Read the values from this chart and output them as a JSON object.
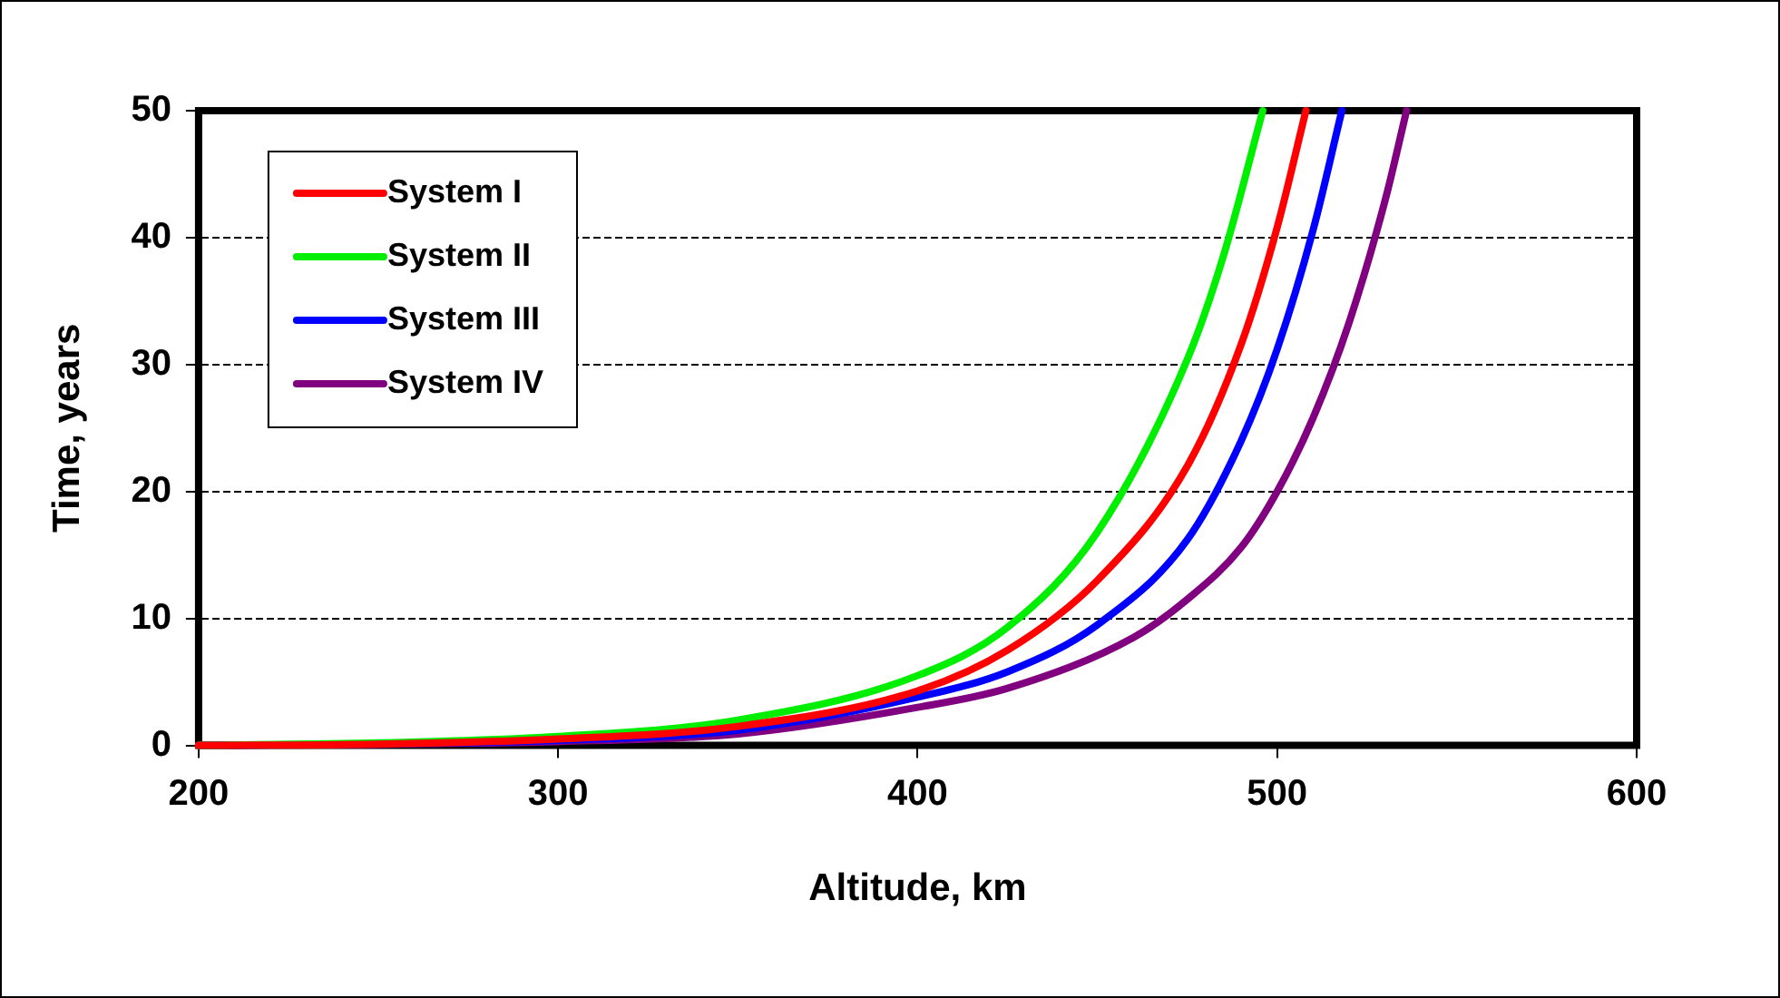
{
  "chart_data": {
    "type": "line",
    "xlabel": "Altitude, km",
    "ylabel": "Time, years",
    "xlim": [
      200,
      600
    ],
    "xticks": [
      200,
      300,
      400,
      500,
      600
    ],
    "ylim": [
      0,
      50
    ],
    "yticks": [
      0,
      10,
      20,
      30,
      40,
      50
    ],
    "grid": "y",
    "legend": "top left",
    "marker": "none",
    "line_style": "solid",
    "series": [
      {
        "name": "System I",
        "color": "#ff0000",
        "x": [
          200,
          250,
          300,
          350,
          400,
          425,
          450,
          475,
          490,
          500,
          508
        ],
        "values": [
          0,
          0.1,
          0.5,
          1.5,
          4.3,
          7.5,
          13,
          22,
          31.6,
          40.8,
          50
        ]
      },
      {
        "name": "System II",
        "color": "#00ee00",
        "x": [
          200,
          250,
          300,
          350,
          400,
          425,
          450,
          475,
          485,
          496
        ],
        "values": [
          0,
          0.2,
          0.7,
          2,
          5.5,
          9.3,
          16.8,
          30.4,
          38.5,
          50
        ]
      },
      {
        "name": "System III",
        "color": "#0000ff",
        "x": [
          200,
          250,
          300,
          350,
          400,
          425,
          450,
          475,
          490,
          500,
          510,
          518
        ],
        "values": [
          0,
          0.1,
          0.4,
          1.2,
          3.8,
          5.8,
          9.5,
          16.2,
          24,
          31.2,
          40.6,
          50
        ]
      },
      {
        "name": "System IV",
        "color": "#800080",
        "x": [
          200,
          250,
          300,
          350,
          400,
          425,
          460,
          475,
          490,
          500,
          510,
          520,
          530,
          536
        ],
        "values": [
          0,
          0.1,
          0.3,
          0.9,
          3,
          4.5,
          8.5,
          11.5,
          15.6,
          20,
          25.8,
          33.3,
          42.9,
          50
        ]
      }
    ]
  }
}
